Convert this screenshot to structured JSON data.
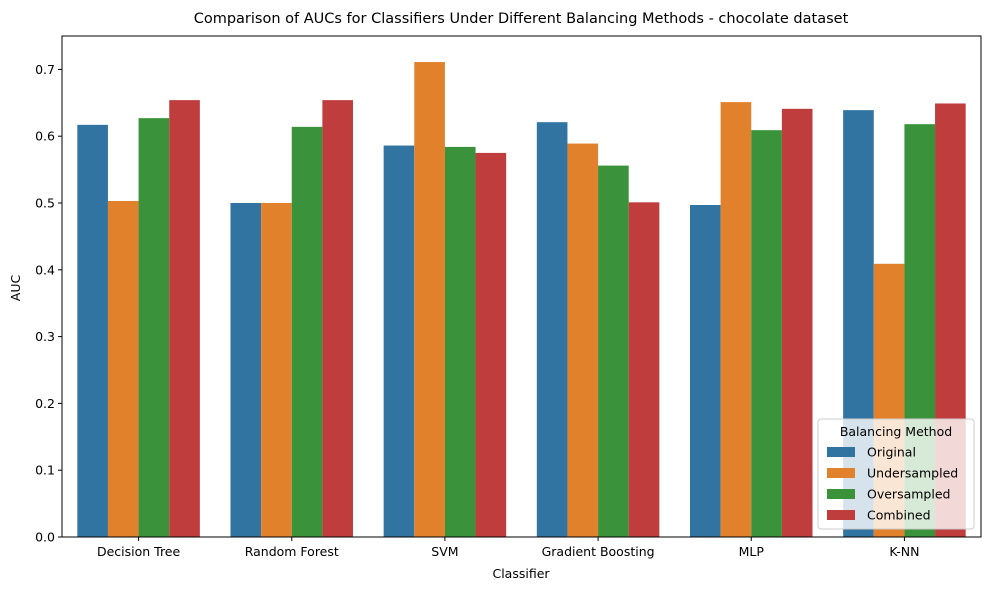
{
  "chart_data": {
    "type": "bar",
    "title": "Comparison of AUCs for Classifiers Under Different Balancing Methods - chocolate dataset",
    "xlabel": "Classifier",
    "ylabel": "AUC",
    "ylim": [
      0,
      0.75
    ],
    "yticks": [
      "0.0",
      "0.1",
      "0.2",
      "0.3",
      "0.4",
      "0.5",
      "0.6",
      "0.7"
    ],
    "categories": [
      "Decision Tree",
      "Random Forest",
      "SVM",
      "Gradient Boosting",
      "MLP",
      "K-NN"
    ],
    "legend": {
      "title": "Balancing Method",
      "placement": "lower-right"
    },
    "series": [
      {
        "name": "Original",
        "color": "#3274a1",
        "values": [
          0.617,
          0.5,
          0.586,
          0.621,
          0.497,
          0.639
        ]
      },
      {
        "name": "Undersampled",
        "color": "#e1812c",
        "values": [
          0.503,
          0.5,
          0.711,
          0.589,
          0.651,
          0.409
        ]
      },
      {
        "name": "Oversampled",
        "color": "#3a923a",
        "values": [
          0.627,
          0.614,
          0.584,
          0.556,
          0.609,
          0.618
        ]
      },
      {
        "name": "Combined",
        "color": "#c03d3e",
        "values": [
          0.654,
          0.654,
          0.575,
          0.501,
          0.641,
          0.649
        ]
      }
    ],
    "grid": false
  }
}
